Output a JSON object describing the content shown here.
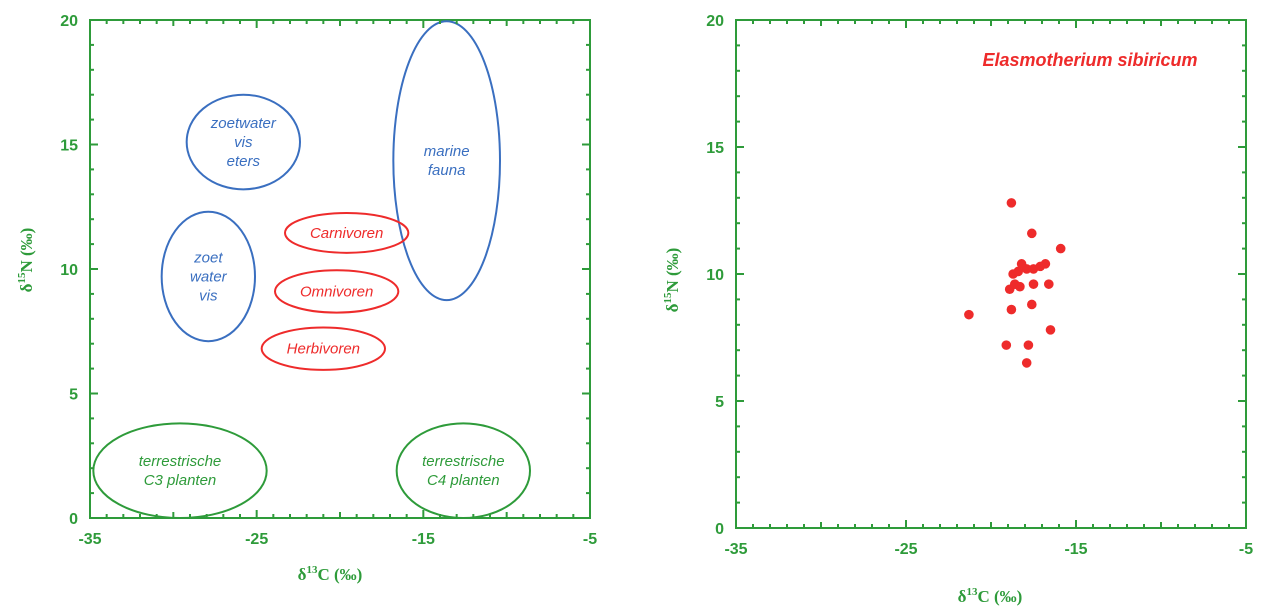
{
  "chart_data": [
    {
      "type": "scatter",
      "title": "",
      "xlabel": "δ13C (‰)",
      "ylabel": "δ15N (‰)",
      "xlim": [
        -35,
        -5
      ],
      "ylim": [
        0,
        20
      ],
      "xticks": [
        "-35",
        "-25",
        "-15",
        "-5"
      ],
      "yticks": [
        "0",
        "5",
        "10",
        "15",
        "20"
      ],
      "grid": false,
      "regions": [
        {
          "label": [
            "zoetwater",
            "vis",
            "eters"
          ],
          "color": "#3a6fc0",
          "cx": -25.8,
          "cy": 15.1,
          "rx": 3.4,
          "ry": 1.9
        },
        {
          "label": [
            "marine",
            "fauna"
          ],
          "color": "#3a6fc0",
          "cx": -13.6,
          "cy": 14.35,
          "rx": 3.2,
          "ry": 5.6
        },
        {
          "label": [
            "zoet",
            "water",
            "vis"
          ],
          "color": "#3a6fc0",
          "cx": -27.9,
          "cy": 9.7,
          "rx": 2.8,
          "ry": 2.6
        },
        {
          "label": [
            "Carnivoren"
          ],
          "color": "#ee2b2b",
          "cx": -19.6,
          "cy": 11.45,
          "rx": 3.7,
          "ry": 0.8
        },
        {
          "label": [
            "Omnivoren"
          ],
          "color": "#ee2b2b",
          "cx": -20.2,
          "cy": 9.1,
          "rx": 3.7,
          "ry": 0.85
        },
        {
          "label": [
            "Herbivoren"
          ],
          "color": "#ee2b2b",
          "cx": -21.0,
          "cy": 6.8,
          "rx": 3.7,
          "ry": 0.85
        },
        {
          "label": [
            "terrestrische",
            "C3 planten"
          ],
          "color": "#2e9b3a",
          "cx": -29.6,
          "cy": 1.9,
          "rx": 5.2,
          "ry": 1.9
        },
        {
          "label": [
            "terrestrische",
            "C4 planten"
          ],
          "color": "#2e9b3a",
          "cx": -12.6,
          "cy": 1.9,
          "rx": 4.0,
          "ry": 1.9
        }
      ]
    },
    {
      "type": "scatter",
      "title": "",
      "xlabel": "δ13C (‰)",
      "ylabel": "δ15N (‰)",
      "xlim": [
        -35,
        -5
      ],
      "ylim": [
        0,
        20
      ],
      "xticks": [
        "-35",
        "-25",
        "-15",
        "-5"
      ],
      "yticks": [
        "0",
        "5",
        "10",
        "15",
        "20"
      ],
      "grid": false,
      "annotation": "Elasmotherium sibiricum",
      "series": [
        {
          "name": "",
          "color": "#ee2b2b",
          "points": [
            [
              -21.3,
              8.4
            ],
            [
              -18.8,
              12.8
            ],
            [
              -17.6,
              11.6
            ],
            [
              -15.9,
              11.0
            ],
            [
              -18.7,
              10.0
            ],
            [
              -18.2,
              10.4
            ],
            [
              -17.9,
              10.2
            ],
            [
              -17.5,
              10.2
            ],
            [
              -17.1,
              10.3
            ],
            [
              -16.8,
              10.4
            ],
            [
              -18.4,
              10.1
            ],
            [
              -18.9,
              9.4
            ],
            [
              -18.6,
              9.6
            ],
            [
              -18.3,
              9.5
            ],
            [
              -17.5,
              9.6
            ],
            [
              -16.6,
              9.6
            ],
            [
              -18.8,
              8.6
            ],
            [
              -17.6,
              8.8
            ],
            [
              -16.5,
              7.8
            ],
            [
              -19.1,
              7.2
            ],
            [
              -17.8,
              7.2
            ],
            [
              -17.9,
              6.5
            ]
          ]
        }
      ]
    }
  ]
}
